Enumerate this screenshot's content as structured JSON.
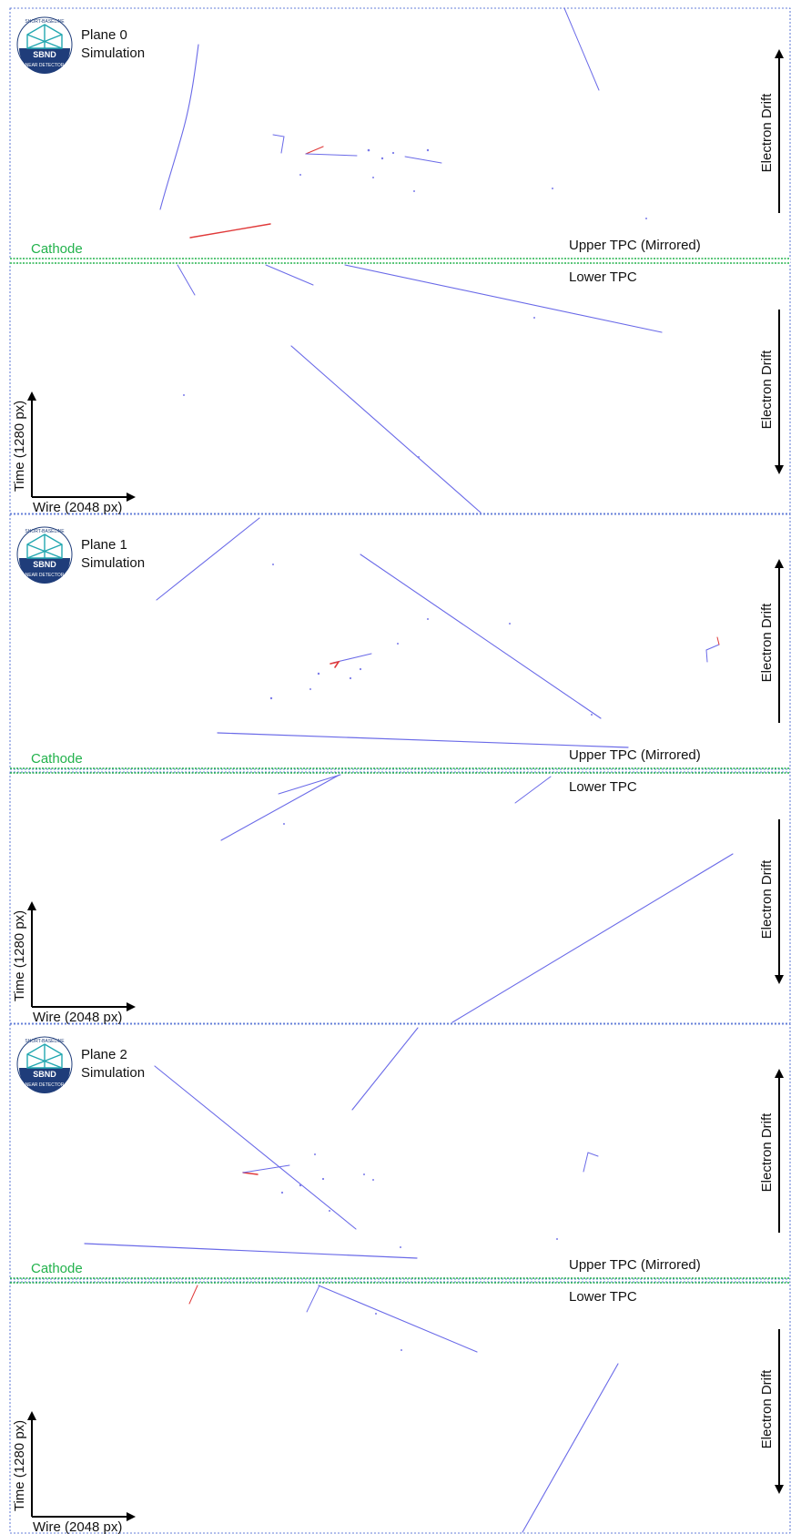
{
  "planes": [
    {
      "logo": {
        "top_text": "SHORT-BASELINE",
        "center_text": "SBND",
        "bottom_text": "NEAR DETECTOR"
      },
      "plane_label": "Plane 0",
      "sim_label": "Simulation",
      "cathode_label": "Cathode",
      "upper_tpc_label": "Upper TPC (Mirrored)",
      "lower_tpc_label": "Lower TPC",
      "drift_label": "Electron Drift",
      "time_axis_label": "Time (1280 px)",
      "wire_axis_label": "Wire (2048 px)"
    },
    {
      "logo": {
        "top_text": "SHORT-BASELINE",
        "center_text": "SBND",
        "bottom_text": "NEAR DETECTOR"
      },
      "plane_label": "Plane 1",
      "sim_label": "Simulation",
      "cathode_label": "Cathode",
      "upper_tpc_label": "Upper TPC (Mirrored)",
      "lower_tpc_label": "Lower TPC",
      "drift_label": "Electron Drift",
      "time_axis_label": "Time (1280 px)",
      "wire_axis_label": "Wire (2048 px)"
    },
    {
      "logo": {
        "top_text": "SHORT-BASELINE",
        "center_text": "SBND",
        "bottom_text": "NEAR DETECTOR"
      },
      "plane_label": "Plane 2",
      "sim_label": "Simulation",
      "cathode_label": "Cathode",
      "upper_tpc_label": "Upper TPC (Mirrored)",
      "lower_tpc_label": "Lower TPC",
      "drift_label": "Electron Drift",
      "time_axis_label": "Time (1280 px)",
      "wire_axis_label": "Wire (2048 px)"
    }
  ],
  "colors": {
    "track": "#6a6ae8",
    "track_highlight": "#e03a3a",
    "cathode": "#22b24c",
    "border": "#3355cc",
    "logo_navy": "#1f3d7a",
    "logo_teal": "#22a7b0"
  }
}
